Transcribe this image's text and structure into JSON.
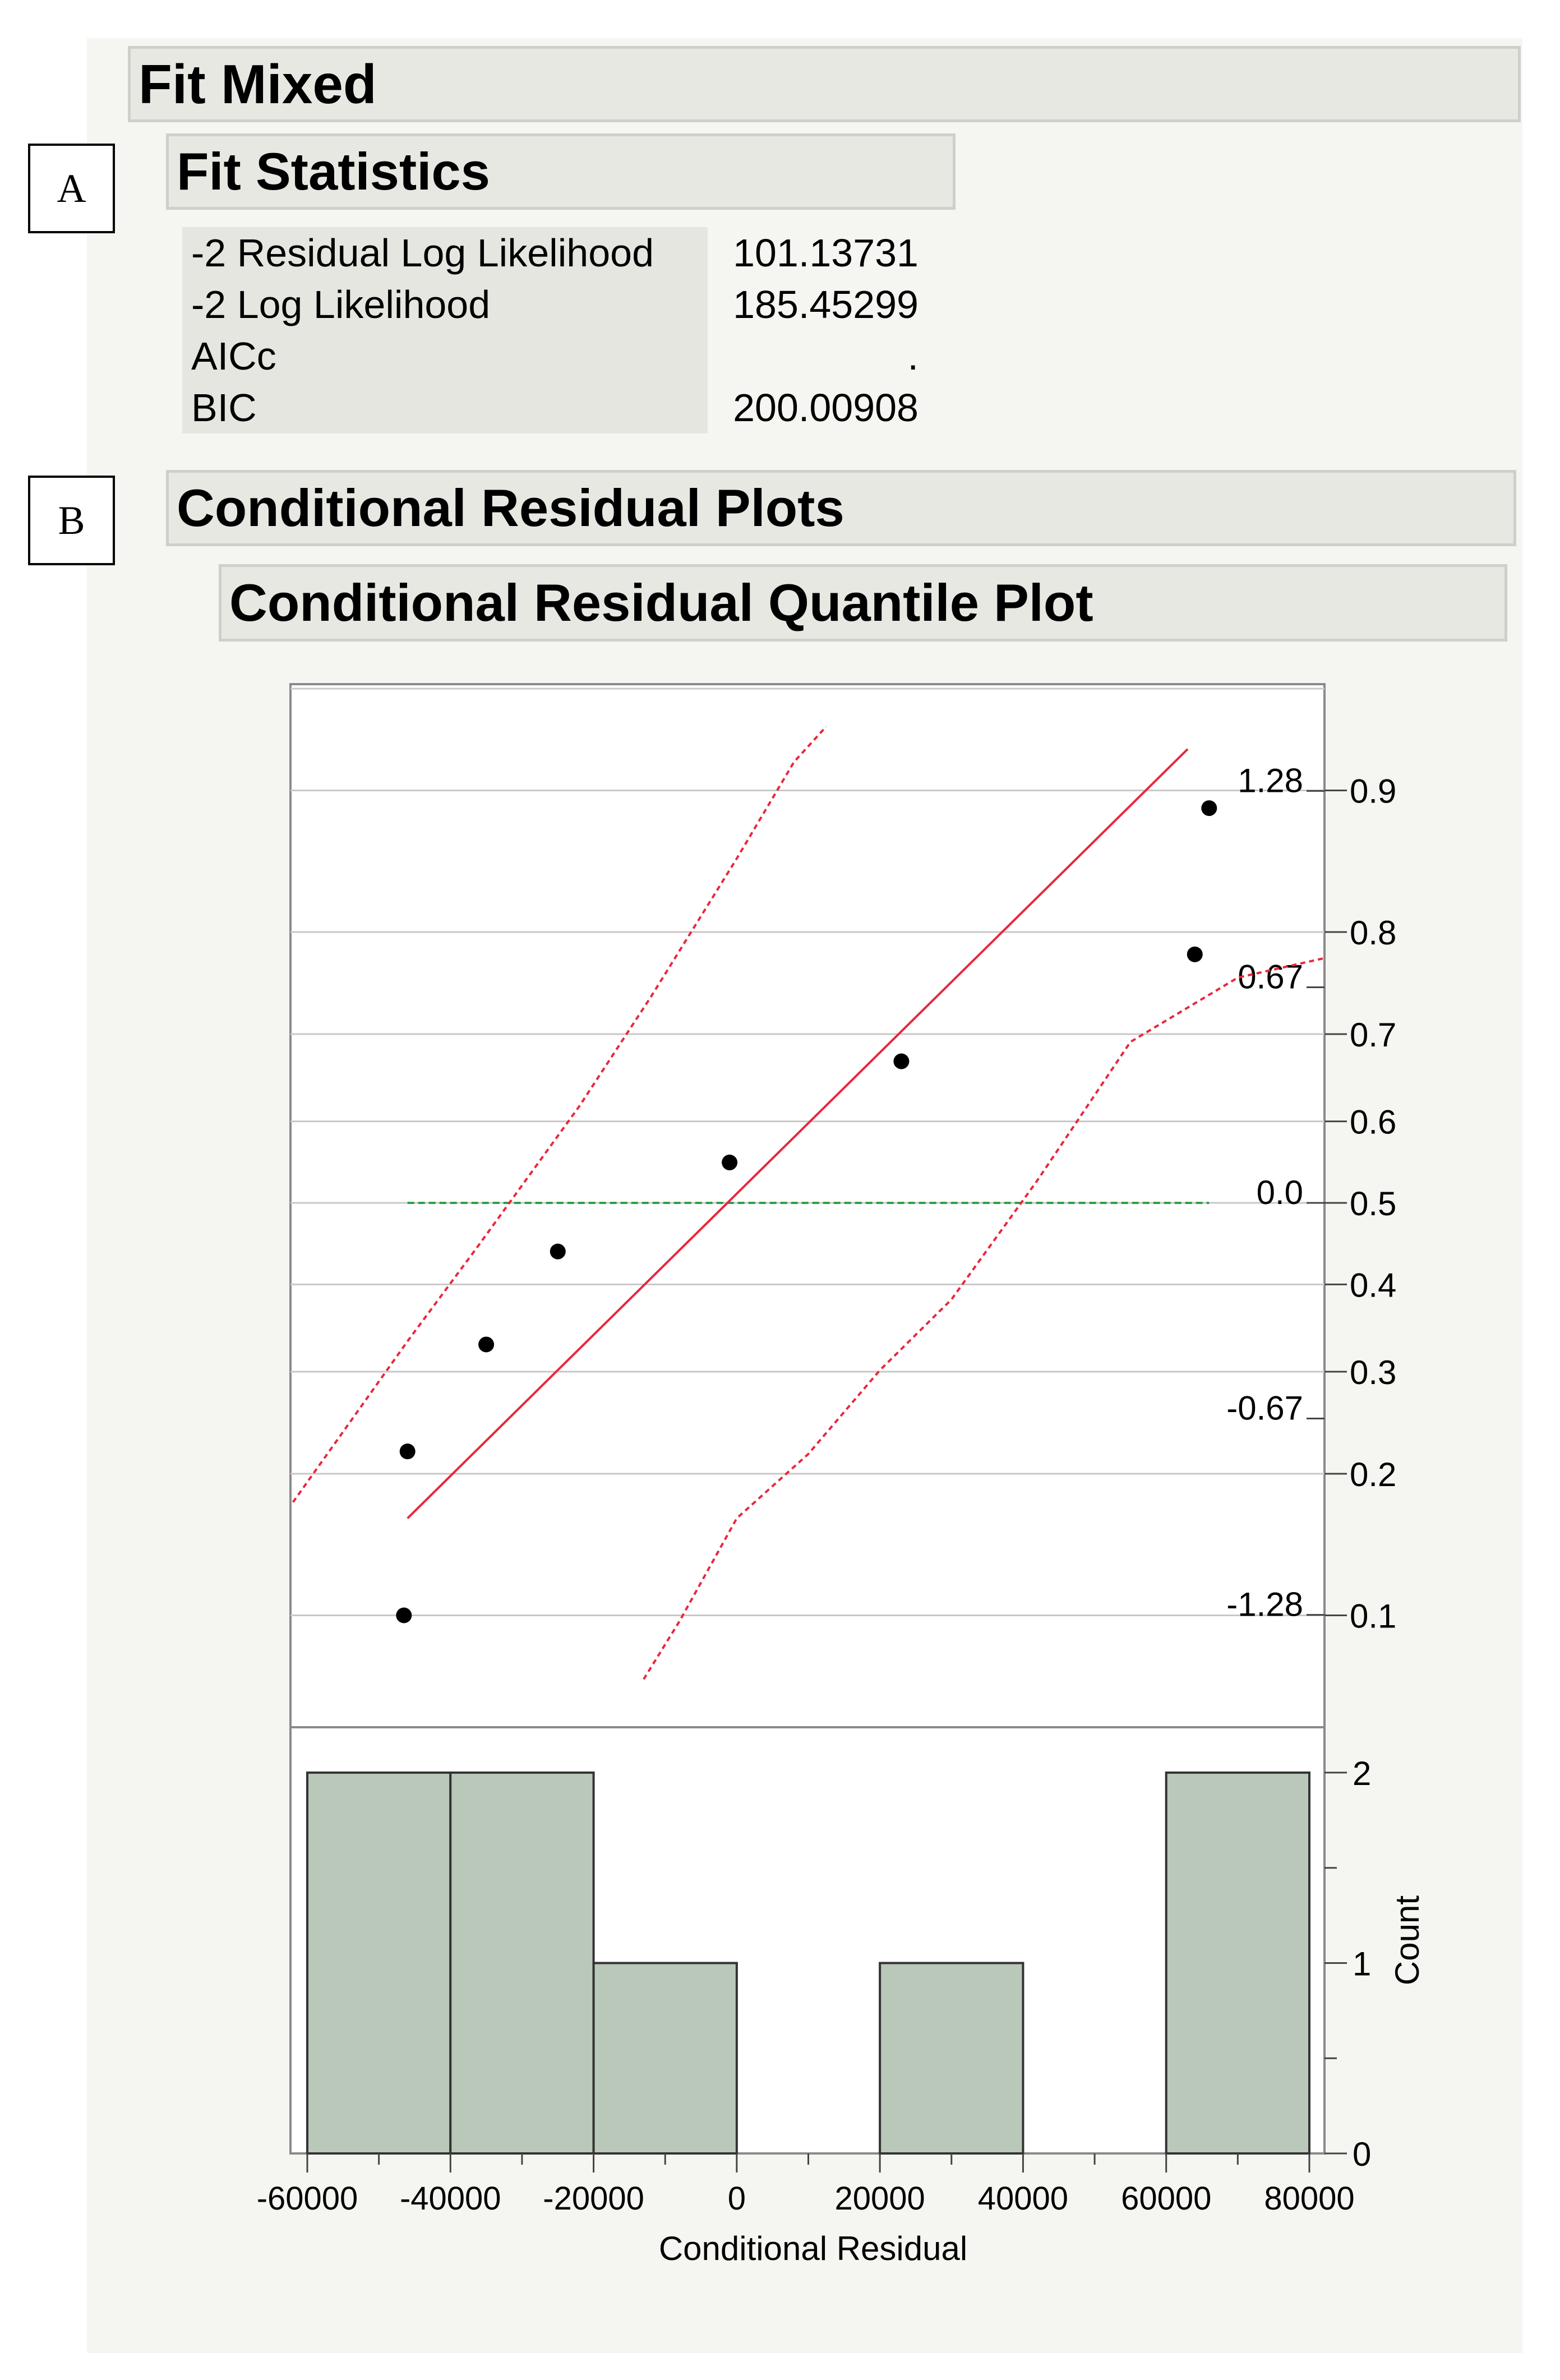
{
  "fit_mixed": {
    "title": "Fit Mixed"
  },
  "section_a": {
    "tag": "A",
    "title": "Fit Statistics",
    "rows": [
      {
        "label": "-2 Residual Log Likelihood",
        "value": "101.13731"
      },
      {
        "label": "-2 Log Likelihood",
        "value": "185.45299"
      },
      {
        "label": "AICc",
        "value": "."
      },
      {
        "label": "BIC",
        "value": "200.00908"
      }
    ]
  },
  "section_b": {
    "tag": "B",
    "title": "Conditional Residual Plots",
    "subtitle": "Conditional Residual Quantile Plot"
  },
  "colors": {
    "fit_line": "#e8273d",
    "confidence_band": "#e8273d",
    "median_line": "#2ea043",
    "bars": "#bac8ba",
    "header_bg": "#e8e8e3",
    "panel_bg": "#f5f5f1"
  },
  "chart_data": [
    {
      "type": "scatter",
      "title": "",
      "xlabel": "Conditional Residual",
      "ylabel": "",
      "xlim": [
        -62000,
        82000
      ],
      "right_axis_probability_ticks": [
        "0.9",
        "0.8",
        "0.7",
        "0.6",
        "0.5",
        "0.4",
        "0.3",
        "0.2",
        "0.1"
      ],
      "right_axis_probability_values": [
        0.9,
        0.8,
        0.7,
        0.6,
        0.5,
        0.4,
        0.3,
        0.2,
        0.1
      ],
      "normal_quantile_labels": [
        "1.28",
        "0.67",
        "0.0",
        "-0.67",
        "-1.28"
      ],
      "normal_quantile_values": [
        1.28,
        0.67,
        0.0,
        -0.67,
        -1.28
      ],
      "points": [
        {
          "x": -46500,
          "p": 0.1
        },
        {
          "x": -46000,
          "p": 0.22
        },
        {
          "x": -35000,
          "p": 0.33
        },
        {
          "x": -25000,
          "p": 0.44
        },
        {
          "x": -1000,
          "p": 0.55
        },
        {
          "x": 23000,
          "p": 0.67
        },
        {
          "x": 64000,
          "p": 0.78
        },
        {
          "x": 66000,
          "p": 0.89
        }
      ],
      "fit_line": {
        "x": [
          -46000,
          63000
        ],
        "q": [
          -0.98,
          1.41
        ]
      },
      "median_line": {
        "x": [
          -46000,
          66000
        ],
        "q": 0.0
      },
      "confidence_band": {
        "upper": {
          "x": [
            -62000,
            -46000,
            -36000,
            -22000,
            -12000,
            0,
            8000,
            12500
          ],
          "q": [
            -0.93,
            -0.43,
            -0.13,
            0.3,
            0.64,
            1.07,
            1.37,
            1.48
          ]
        },
        "lower": {
          "x": [
            -13000,
            -8000,
            0,
            10000,
            20000,
            30000,
            42000,
            55000,
            70000,
            82000
          ],
          "q": [
            -1.48,
            -1.3,
            -0.98,
            -0.78,
            -0.52,
            -0.3,
            0.07,
            0.5,
            0.7,
            0.76
          ]
        }
      },
      "grid": true
    },
    {
      "type": "bar",
      "title": "",
      "xlabel": "Conditional Residual",
      "ylabel": "Count",
      "bins": [
        {
          "from": -60000,
          "to": -40000,
          "count": 2
        },
        {
          "from": -40000,
          "to": -20000,
          "count": 2
        },
        {
          "from": -20000,
          "to": 0,
          "count": 1
        },
        {
          "from": 0,
          "to": 20000,
          "count": 0
        },
        {
          "from": 20000,
          "to": 40000,
          "count": 1
        },
        {
          "from": 40000,
          "to": 60000,
          "count": 0
        },
        {
          "from": 60000,
          "to": 80000,
          "count": 2
        }
      ],
      "xticks": [
        "-60000",
        "-40000",
        "-20000",
        "0",
        "20000",
        "40000",
        "60000",
        "80000"
      ],
      "xtick_values": [
        -60000,
        -40000,
        -20000,
        0,
        20000,
        40000,
        60000,
        80000
      ],
      "yticks": [
        "0",
        "1",
        "2"
      ],
      "ytick_values": [
        0,
        1,
        2
      ],
      "ylim": [
        0,
        2.15
      ]
    }
  ]
}
